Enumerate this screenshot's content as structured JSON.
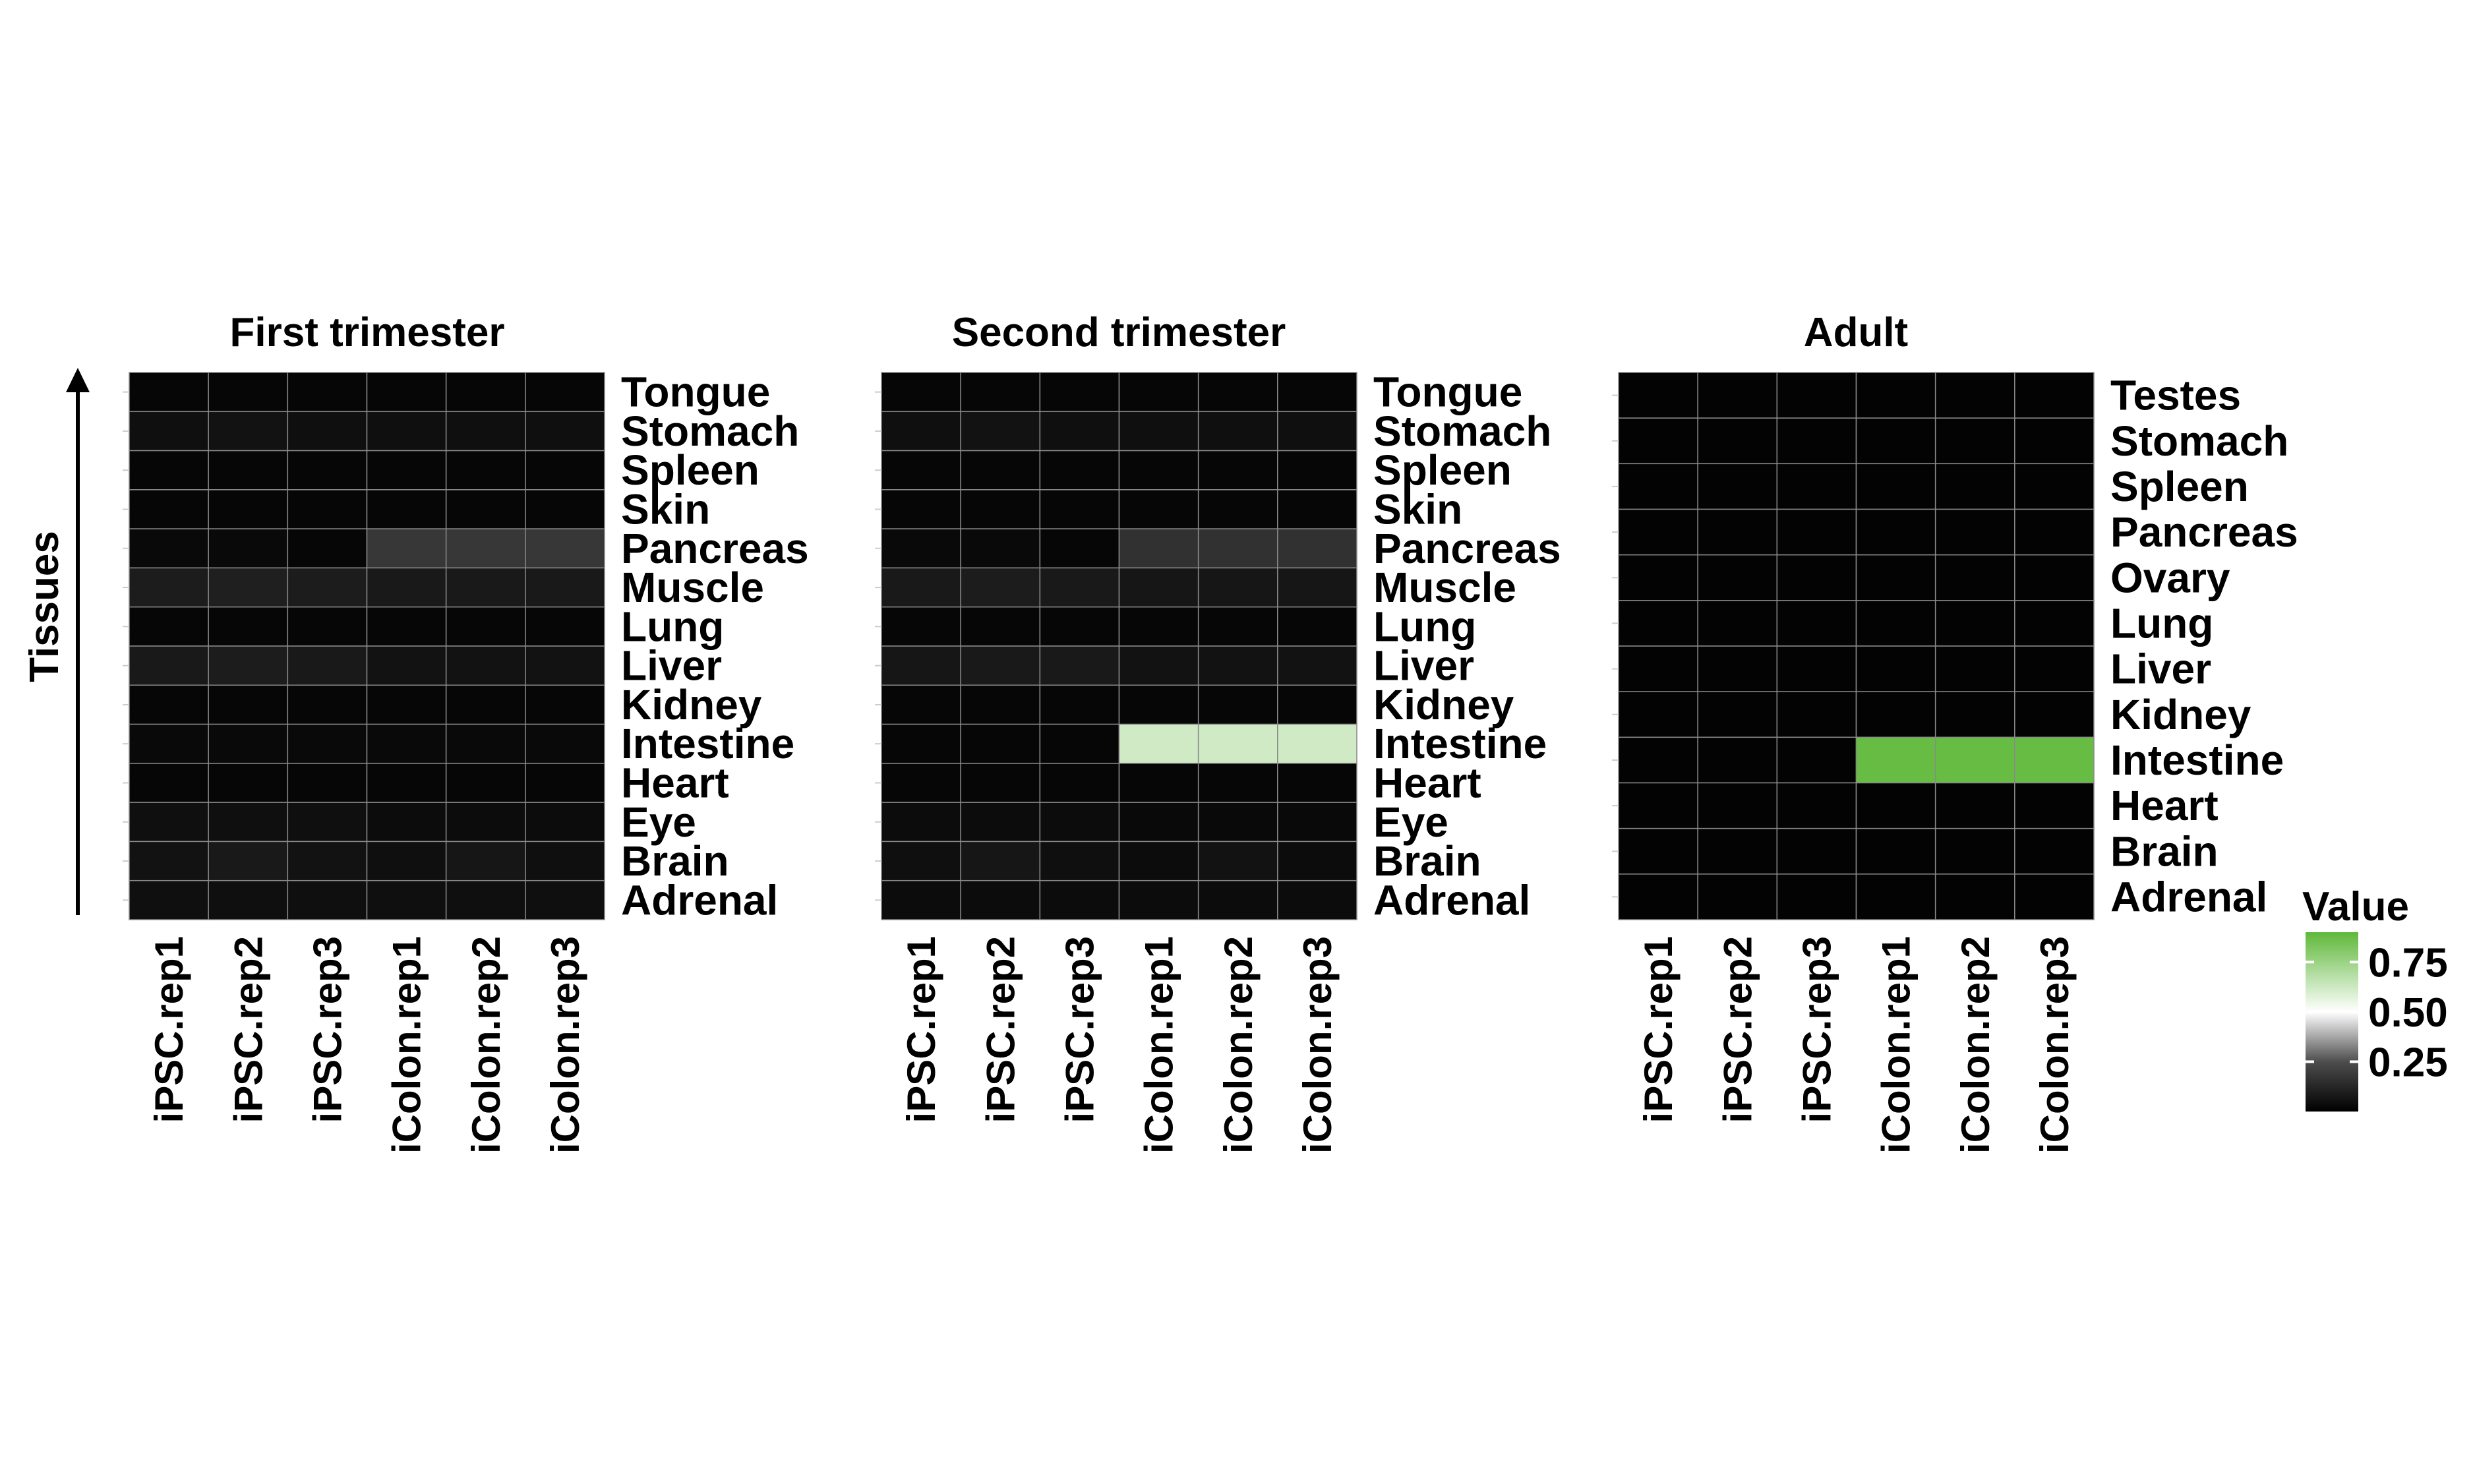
{
  "chart_data": {
    "type": "heatmap",
    "y_axis_label": "Tissues",
    "columns": [
      "iPSC.rep1",
      "iPSC.rep2",
      "iPSC.rep3",
      "iColon.rep1",
      "iColon.rep2",
      "iColon.rep3"
    ],
    "color_scale": {
      "title": "Value",
      "ticks": [
        "0.25",
        "0.50",
        "0.75"
      ],
      "stops": [
        {
          "value": 0.0,
          "color": "#000000"
        },
        {
          "value": 0.25,
          "color": "#4d4d4d"
        },
        {
          "value": 0.5,
          "color": "#ffffff"
        },
        {
          "value": 0.9,
          "color": "#5fb83a"
        }
      ]
    },
    "panels": [
      {
        "title": "First trimester",
        "rows": [
          "Tongue",
          "Stomach",
          "Spleen",
          "Skin",
          "Pancreas",
          "Muscle",
          "Lung",
          "Liver",
          "Kidney",
          "Intestine",
          "Heart",
          "Eye",
          "Brain",
          "Adrenal"
        ],
        "values": [
          [
            0.02,
            0.02,
            0.02,
            0.02,
            0.02,
            0.02
          ],
          [
            0.05,
            0.06,
            0.05,
            0.05,
            0.05,
            0.05
          ],
          [
            0.02,
            0.02,
            0.02,
            0.02,
            0.02,
            0.02
          ],
          [
            0.02,
            0.02,
            0.02,
            0.02,
            0.02,
            0.02
          ],
          [
            0.03,
            0.03,
            0.02,
            0.18,
            0.18,
            0.18
          ],
          [
            0.09,
            0.1,
            0.09,
            0.08,
            0.08,
            0.08
          ],
          [
            0.02,
            0.02,
            0.02,
            0.02,
            0.02,
            0.02
          ],
          [
            0.08,
            0.09,
            0.08,
            0.06,
            0.06,
            0.06
          ],
          [
            0.02,
            0.02,
            0.02,
            0.02,
            0.02,
            0.02
          ],
          [
            0.03,
            0.03,
            0.03,
            0.03,
            0.03,
            0.03
          ],
          [
            0.02,
            0.02,
            0.02,
            0.02,
            0.02,
            0.02
          ],
          [
            0.05,
            0.05,
            0.05,
            0.04,
            0.04,
            0.04
          ],
          [
            0.06,
            0.08,
            0.06,
            0.05,
            0.07,
            0.05
          ],
          [
            0.05,
            0.05,
            0.05,
            0.05,
            0.05,
            0.05
          ]
        ]
      },
      {
        "title": "Second trimester",
        "rows": [
          "Tongue",
          "Stomach",
          "Spleen",
          "Skin",
          "Pancreas",
          "Muscle",
          "Lung",
          "Liver",
          "Kidney",
          "Intestine",
          "Heart",
          "Eye",
          "Brain",
          "Adrenal"
        ],
        "values": [
          [
            0.02,
            0.02,
            0.02,
            0.02,
            0.02,
            0.02
          ],
          [
            0.05,
            0.06,
            0.05,
            0.05,
            0.05,
            0.05
          ],
          [
            0.02,
            0.02,
            0.02,
            0.02,
            0.02,
            0.02
          ],
          [
            0.02,
            0.02,
            0.02,
            0.02,
            0.02,
            0.02
          ],
          [
            0.03,
            0.03,
            0.02,
            0.16,
            0.16,
            0.16
          ],
          [
            0.08,
            0.09,
            0.08,
            0.07,
            0.07,
            0.07
          ],
          [
            0.02,
            0.02,
            0.02,
            0.02,
            0.02,
            0.02
          ],
          [
            0.07,
            0.08,
            0.08,
            0.06,
            0.06,
            0.06
          ],
          [
            0.02,
            0.02,
            0.02,
            0.02,
            0.02,
            0.02
          ],
          [
            0.02,
            0.02,
            0.02,
            0.62,
            0.62,
            0.62
          ],
          [
            0.02,
            0.02,
            0.02,
            0.02,
            0.02,
            0.02
          ],
          [
            0.04,
            0.04,
            0.04,
            0.03,
            0.03,
            0.03
          ],
          [
            0.05,
            0.07,
            0.05,
            0.04,
            0.06,
            0.04
          ],
          [
            0.04,
            0.04,
            0.04,
            0.04,
            0.04,
            0.04
          ]
        ]
      },
      {
        "title": "Adult",
        "rows": [
          "Testes",
          "Stomach",
          "Spleen",
          "Pancreas",
          "Ovary",
          "Lung",
          "Liver",
          "Kidney",
          "Intestine",
          "Heart",
          "Brain",
          "Adrenal"
        ],
        "values": [
          [
            0.01,
            0.01,
            0.01,
            0.01,
            0.01,
            0.01
          ],
          [
            0.01,
            0.01,
            0.01,
            0.01,
            0.01,
            0.01
          ],
          [
            0.01,
            0.01,
            0.01,
            0.01,
            0.01,
            0.01
          ],
          [
            0.01,
            0.01,
            0.01,
            0.01,
            0.01,
            0.01
          ],
          [
            0.01,
            0.01,
            0.01,
            0.01,
            0.01,
            0.01
          ],
          [
            0.01,
            0.01,
            0.01,
            0.01,
            0.01,
            0.01
          ],
          [
            0.01,
            0.01,
            0.01,
            0.01,
            0.01,
            0.01
          ],
          [
            0.01,
            0.01,
            0.01,
            0.01,
            0.01,
            0.01
          ],
          [
            0.01,
            0.01,
            0.01,
            0.88,
            0.88,
            0.88
          ],
          [
            0.01,
            0.01,
            0.01,
            0.01,
            0.01,
            0.01
          ],
          [
            0.01,
            0.01,
            0.01,
            0.01,
            0.01,
            0.01
          ],
          [
            0.01,
            0.01,
            0.01,
            0.01,
            0.01,
            0.01
          ]
        ]
      }
    ]
  }
}
